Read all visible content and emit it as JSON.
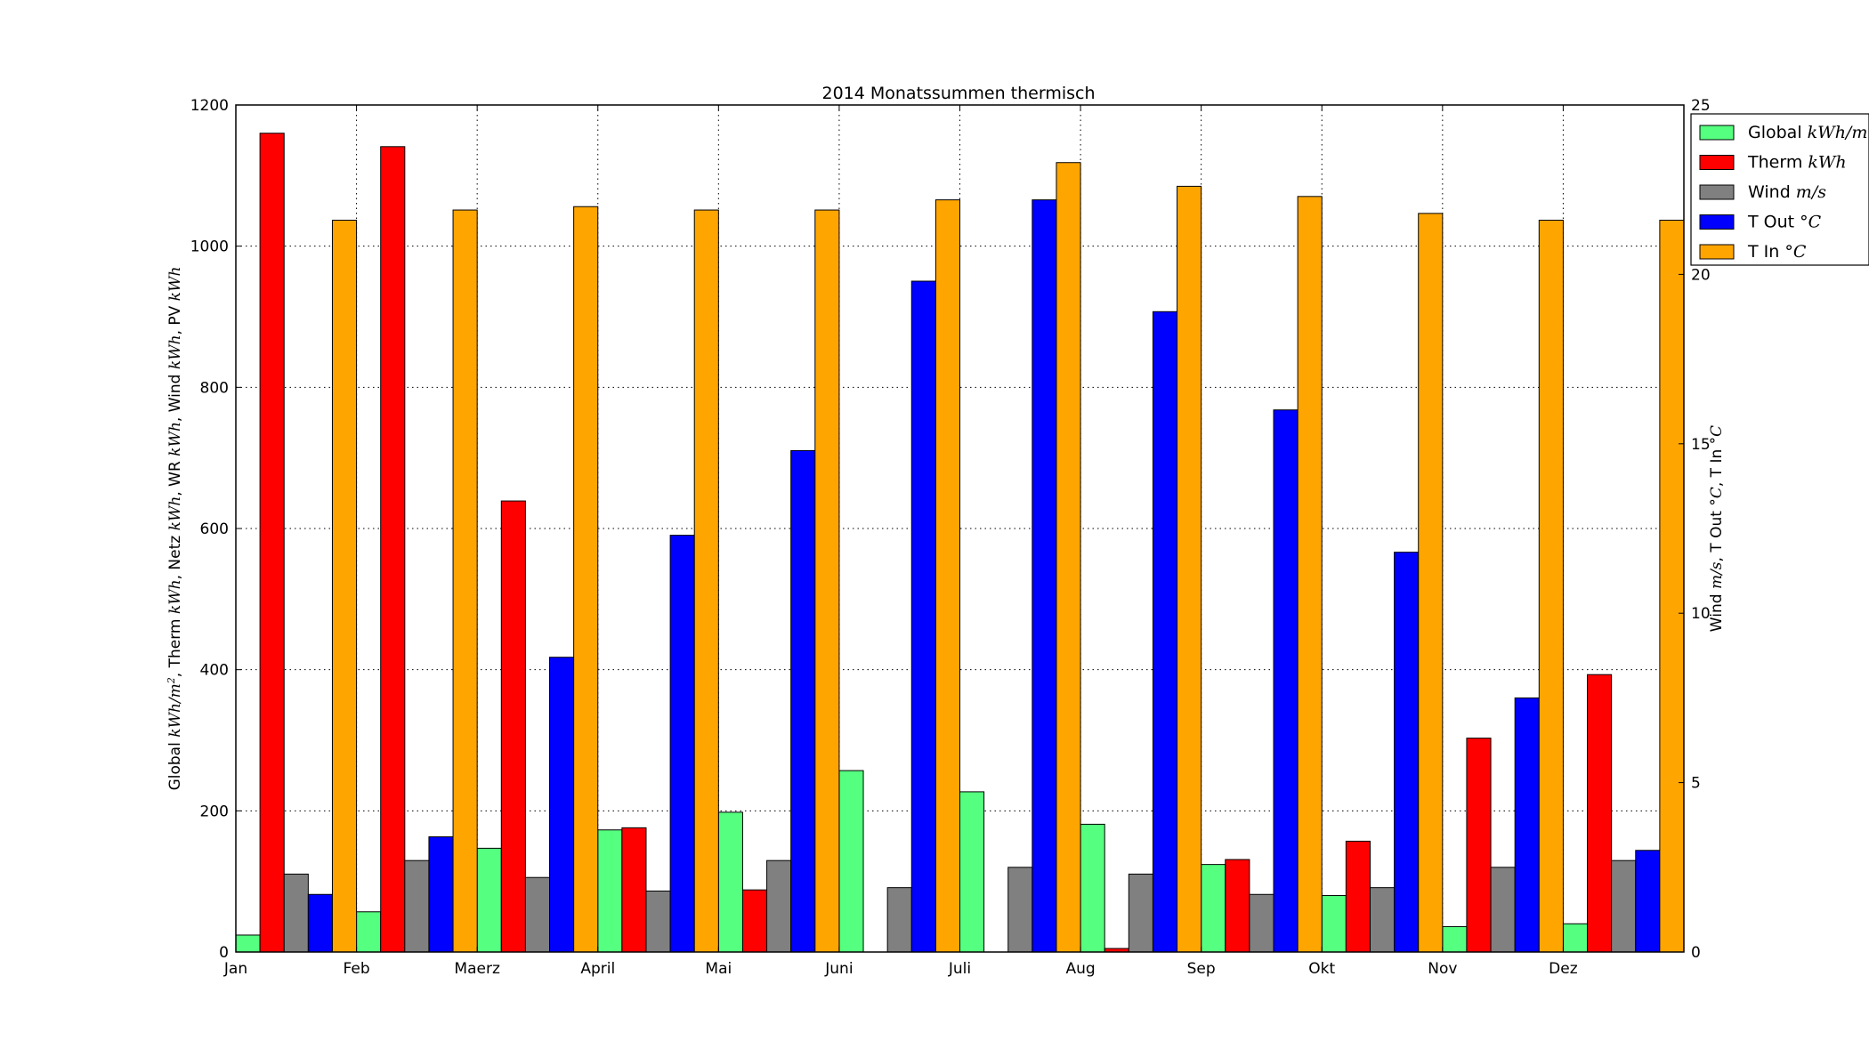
{
  "chart_data": {
    "type": "bar",
    "title": "2014 Monatssummen thermisch",
    "categories": [
      "Jan",
      "Feb",
      "Maerz",
      "April",
      "Mai",
      "Juni",
      "Juli",
      "Aug",
      "Sep",
      "Okt",
      "Nov",
      "Dez"
    ],
    "y_left": {
      "label_parts": [
        {
          "text": "Global "
        },
        {
          "text": "kWh/m",
          "math": true
        },
        {
          "text": "2",
          "math": true,
          "sup": true
        },
        {
          "text": ", Therm "
        },
        {
          "text": "kWh",
          "math": true
        },
        {
          "text": ", Netz "
        },
        {
          "text": "kWh",
          "math": true
        },
        {
          "text": ", WR "
        },
        {
          "text": "kWh",
          "math": true
        },
        {
          "text": ", Wind "
        },
        {
          "text": "kWh",
          "math": true
        },
        {
          "text": ", PV "
        },
        {
          "text": "kWh",
          "math": true
        }
      ],
      "lim": [
        0,
        1200
      ],
      "ticks": [
        0,
        200,
        400,
        600,
        800,
        1000,
        1200
      ]
    },
    "y_right": {
      "label_parts": [
        {
          "text": "Wind "
        },
        {
          "text": "m/s",
          "math": true
        },
        {
          "text": ", T Out "
        },
        {
          "text": "°C",
          "math": true
        },
        {
          "text": ", T In "
        },
        {
          "text": "°C",
          "math": true
        }
      ],
      "lim": [
        0,
        25
      ],
      "ticks": [
        0,
        5,
        10,
        15,
        20,
        25
      ]
    },
    "grid": true,
    "legend_position": "top-right (outside)",
    "series": [
      {
        "name": "Global kWh/m²",
        "legend_parts": [
          {
            "text": "Global "
          },
          {
            "text": "kWh/m",
            "math": true
          }
        ],
        "axis": "left",
        "color": "#55ff7f",
        "values": [
          24,
          57,
          147,
          173,
          198,
          257,
          227,
          181,
          124,
          80,
          36,
          40
        ]
      },
      {
        "name": "Therm kWh",
        "legend_parts": [
          {
            "text": "Therm "
          },
          {
            "text": "kWh",
            "math": true
          }
        ],
        "axis": "left",
        "color": "#ff0000",
        "values": [
          1160,
          1141,
          639,
          176,
          88,
          0,
          0,
          5,
          131,
          157,
          303,
          393
        ]
      },
      {
        "name": "Wind m/s",
        "legend_parts": [
          {
            "text": "Wind "
          },
          {
            "text": "m/s",
            "math": true
          }
        ],
        "axis": "right",
        "color": "#808080",
        "values": [
          2.3,
          2.7,
          2.2,
          1.8,
          2.7,
          1.9,
          2.5,
          2.3,
          1.7,
          1.9,
          2.5,
          2.7
        ]
      },
      {
        "name": "T Out °C",
        "legend_parts": [
          {
            "text": "T Out "
          },
          {
            "text": "°C",
            "math": true
          }
        ],
        "axis": "right",
        "color": "#0000ff",
        "values": [
          1.7,
          3.4,
          8.7,
          12.3,
          14.8,
          19.8,
          22.2,
          18.9,
          16.0,
          11.8,
          7.5,
          3.0
        ]
      },
      {
        "name": "T In °C",
        "legend_parts": [
          {
            "text": "T In "
          },
          {
            "text": "°C",
            "math": true
          }
        ],
        "axis": "right",
        "color": "#ffa500",
        "values": [
          21.6,
          21.9,
          22.0,
          21.9,
          21.9,
          22.2,
          23.3,
          22.6,
          22.3,
          21.8,
          21.6,
          21.6
        ]
      }
    ]
  }
}
